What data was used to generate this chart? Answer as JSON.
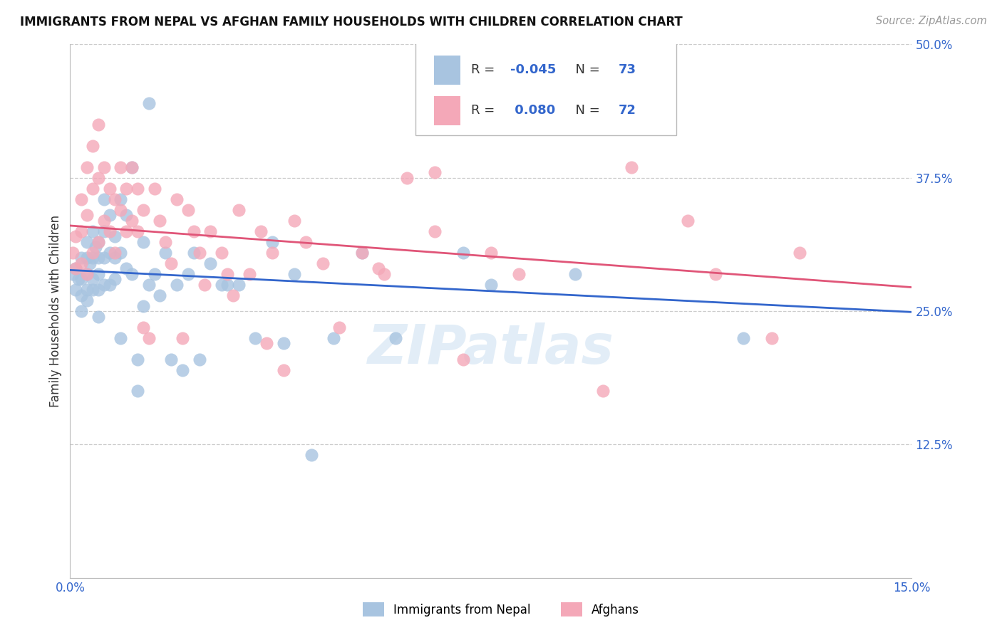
{
  "title": "IMMIGRANTS FROM NEPAL VS AFGHAN FAMILY HOUSEHOLDS WITH CHILDREN CORRELATION CHART",
  "source": "Source: ZipAtlas.com",
  "ylabel": "Family Households with Children",
  "xlim": [
    0,
    0.15
  ],
  "ylim": [
    0,
    0.5
  ],
  "yticks": [
    0.125,
    0.25,
    0.375,
    0.5
  ],
  "ytick_labels": [
    "12.5%",
    "25.0%",
    "37.5%",
    "50.0%"
  ],
  "xticks": [
    0.0,
    0.025,
    0.05,
    0.075,
    0.1,
    0.125,
    0.15
  ],
  "nepal_R": -0.045,
  "nepal_N": 73,
  "afghan_R": 0.08,
  "afghan_N": 72,
  "nepal_color": "#a8c4e0",
  "afghan_color": "#f4a8b8",
  "nepal_line_color": "#3366cc",
  "afghan_line_color": "#e05578",
  "legend_label_nepal": "Immigrants from Nepal",
  "legend_label_afghan": "Afghans",
  "background_color": "#ffffff",
  "grid_color": "#cccccc",
  "watermark": "ZIPatlas",
  "nepal_x": [
    0.0005,
    0.001,
    0.001,
    0.0015,
    0.002,
    0.002,
    0.002,
    0.002,
    0.003,
    0.003,
    0.003,
    0.003,
    0.003,
    0.0035,
    0.004,
    0.004,
    0.004,
    0.004,
    0.0045,
    0.005,
    0.005,
    0.005,
    0.005,
    0.005,
    0.006,
    0.006,
    0.006,
    0.006,
    0.007,
    0.007,
    0.007,
    0.008,
    0.008,
    0.008,
    0.009,
    0.009,
    0.009,
    0.01,
    0.01,
    0.011,
    0.011,
    0.012,
    0.012,
    0.013,
    0.013,
    0.014,
    0.014,
    0.015,
    0.016,
    0.017,
    0.018,
    0.019,
    0.02,
    0.021,
    0.022,
    0.023,
    0.025,
    0.027,
    0.03,
    0.033,
    0.036,
    0.04,
    0.043,
    0.047,
    0.052,
    0.058,
    0.065,
    0.07,
    0.075,
    0.09,
    0.12,
    0.038,
    0.028
  ],
  "nepal_y": [
    0.285,
    0.29,
    0.27,
    0.28,
    0.3,
    0.28,
    0.265,
    0.25,
    0.315,
    0.3,
    0.285,
    0.27,
    0.26,
    0.295,
    0.325,
    0.3,
    0.28,
    0.27,
    0.31,
    0.315,
    0.3,
    0.285,
    0.27,
    0.245,
    0.355,
    0.325,
    0.3,
    0.275,
    0.34,
    0.305,
    0.275,
    0.32,
    0.3,
    0.28,
    0.355,
    0.305,
    0.225,
    0.34,
    0.29,
    0.385,
    0.285,
    0.205,
    0.175,
    0.315,
    0.255,
    0.445,
    0.275,
    0.285,
    0.265,
    0.305,
    0.205,
    0.275,
    0.195,
    0.285,
    0.305,
    0.205,
    0.295,
    0.275,
    0.275,
    0.225,
    0.315,
    0.285,
    0.115,
    0.225,
    0.305,
    0.225,
    0.485,
    0.305,
    0.275,
    0.285,
    0.225,
    0.22,
    0.275
  ],
  "afghan_x": [
    0.0005,
    0.001,
    0.001,
    0.002,
    0.002,
    0.002,
    0.003,
    0.003,
    0.003,
    0.004,
    0.004,
    0.004,
    0.005,
    0.005,
    0.005,
    0.006,
    0.006,
    0.007,
    0.007,
    0.008,
    0.008,
    0.009,
    0.009,
    0.01,
    0.01,
    0.011,
    0.011,
    0.012,
    0.012,
    0.013,
    0.014,
    0.015,
    0.016,
    0.017,
    0.018,
    0.019,
    0.02,
    0.021,
    0.022,
    0.023,
    0.025,
    0.027,
    0.028,
    0.029,
    0.03,
    0.032,
    0.034,
    0.036,
    0.038,
    0.04,
    0.042,
    0.045,
    0.048,
    0.052,
    0.056,
    0.06,
    0.065,
    0.075,
    0.09,
    0.1,
    0.11,
    0.125,
    0.13,
    0.07,
    0.08,
    0.095,
    0.115,
    0.065,
    0.035,
    0.055,
    0.013,
    0.024
  ],
  "afghan_y": [
    0.305,
    0.32,
    0.29,
    0.355,
    0.325,
    0.295,
    0.385,
    0.34,
    0.285,
    0.405,
    0.365,
    0.305,
    0.425,
    0.375,
    0.315,
    0.385,
    0.335,
    0.365,
    0.325,
    0.355,
    0.305,
    0.385,
    0.345,
    0.365,
    0.325,
    0.385,
    0.335,
    0.365,
    0.325,
    0.345,
    0.225,
    0.365,
    0.335,
    0.315,
    0.295,
    0.355,
    0.225,
    0.345,
    0.325,
    0.305,
    0.325,
    0.305,
    0.285,
    0.265,
    0.345,
    0.285,
    0.325,
    0.305,
    0.195,
    0.335,
    0.315,
    0.295,
    0.235,
    0.305,
    0.285,
    0.375,
    0.325,
    0.305,
    0.475,
    0.385,
    0.335,
    0.225,
    0.305,
    0.205,
    0.285,
    0.175,
    0.285,
    0.38,
    0.22,
    0.29,
    0.235,
    0.275
  ]
}
